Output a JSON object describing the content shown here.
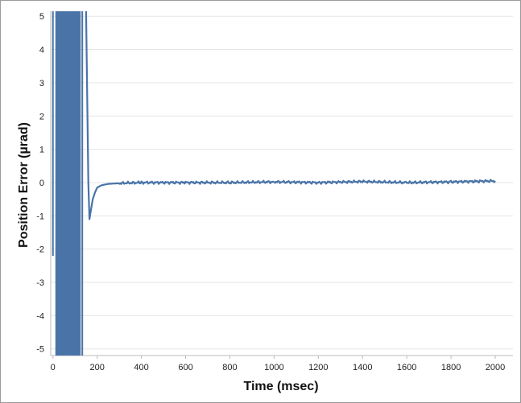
{
  "chart_data": {
    "type": "line",
    "title": "",
    "xlabel": "Time (msec)",
    "ylabel": "Position Error (µrad)",
    "xlim": [
      -10,
      2080
    ],
    "ylim": [
      -5.2,
      5.15
    ],
    "xticks": [
      0,
      200,
      400,
      600,
      800,
      1000,
      1200,
      1400,
      1600,
      1800,
      2000
    ],
    "yticks": [
      5,
      4,
      3,
      2,
      1,
      0,
      -1,
      -2,
      -3,
      -4,
      -5
    ],
    "grid": true,
    "line_color": "#4a74a8",
    "series": [
      {
        "name": "",
        "x": [
          0,
          5,
          10,
          130,
          140,
          150,
          160,
          165,
          170,
          180,
          190,
          200,
          220,
          250,
          300,
          400,
          600,
          800,
          1000,
          1200,
          1400,
          1600,
          1800,
          2000
        ],
        "y": [
          -5.2,
          5.15,
          5.15,
          5.15,
          5.15,
          5.15,
          0.0,
          -1.1,
          -0.9,
          -0.5,
          -0.3,
          -0.15,
          -0.08,
          -0.04,
          -0.02,
          0.0,
          0.0,
          0.0,
          0.02,
          0.0,
          0.03,
          0.0,
          0.02,
          0.05
        ],
        "saturated_region_x": [
          0,
          140
        ]
      }
    ]
  }
}
